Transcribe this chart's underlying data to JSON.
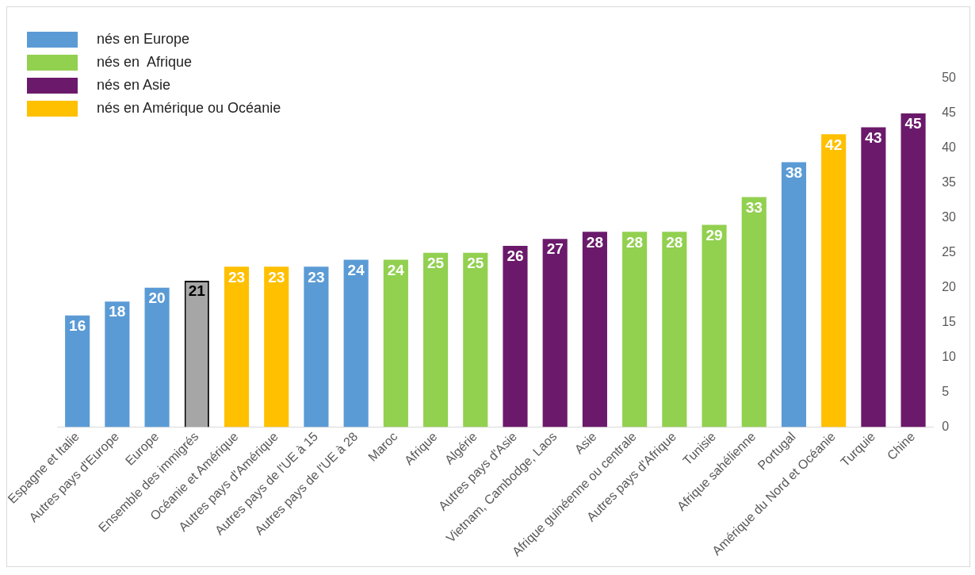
{
  "chart_data": {
    "type": "bar",
    "stacked": true,
    "categories": [
      "Espagne et Italie",
      "Autres pays d'Europe",
      "Europe",
      "Ensemble des immigrés",
      "Océanie et Amérique",
      "Autres pays d'Amérique",
      "Autres pays de l'UE à 15",
      "Autres pays de l'UE à 28",
      "Maroc",
      "Afrique",
      "Algérie",
      "Autres pays d'Asie",
      "Vietnam, Cambodge, Laos",
      "Asie",
      "Afrique guinéenne ou centrale",
      "Autres pays d'Afrique",
      "Tunisie",
      "Afrique sahélienne",
      "Portugal",
      "Amérique du Nord et Océanie",
      "Turquie",
      "Chine"
    ],
    "series": [
      {
        "name": "nés en Europe",
        "color": "#5b9bd5",
        "values": [
          16,
          18,
          20,
          null,
          null,
          null,
          23,
          24,
          null,
          null,
          null,
          null,
          null,
          null,
          null,
          null,
          null,
          null,
          38,
          null,
          null,
          null
        ]
      },
      {
        "name": "nés en  Afrique",
        "color": "#92d050",
        "values": [
          null,
          null,
          null,
          null,
          null,
          null,
          null,
          null,
          24,
          25,
          25,
          null,
          null,
          null,
          28,
          28,
          29,
          33,
          null,
          null,
          null,
          null
        ]
      },
      {
        "name": "nés en Asie",
        "color": "#6b1a6b",
        "values": [
          null,
          null,
          null,
          null,
          null,
          null,
          null,
          null,
          null,
          null,
          null,
          26,
          27,
          28,
          null,
          null,
          null,
          null,
          null,
          null,
          43,
          45
        ]
      },
      {
        "name": "nés en Amérique ou Océanie",
        "color": "#ffc000",
        "values": [
          null,
          null,
          null,
          null,
          23,
          23,
          null,
          null,
          null,
          null,
          null,
          null,
          null,
          null,
          null,
          null,
          null,
          null,
          null,
          42,
          null,
          null
        ]
      },
      {
        "color": "#a6a6a6",
        "values": [
          null,
          null,
          null,
          21,
          null,
          null,
          null,
          null,
          null,
          null,
          null,
          null,
          null,
          null,
          null,
          null,
          null,
          null,
          null,
          null,
          null,
          null
        ]
      }
    ],
    "ylim": [
      0,
      50
    ],
    "yticks": [
      0,
      5,
      10,
      15,
      20,
      25,
      30,
      35,
      40,
      45,
      50
    ],
    "grid": false,
    "legend": "top left",
    "data_labels": true
  }
}
